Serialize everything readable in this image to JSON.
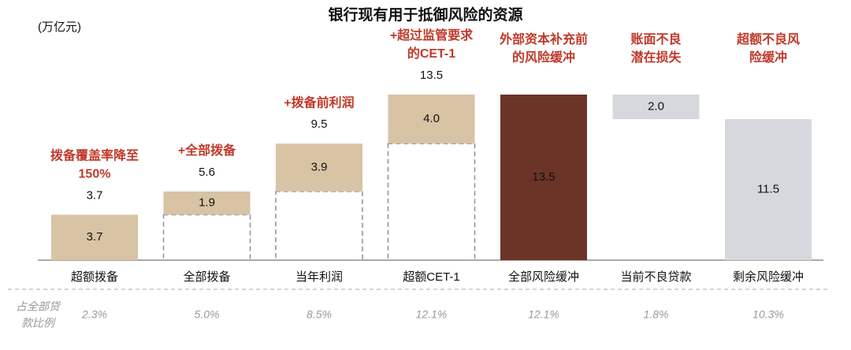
{
  "chart_data": {
    "type": "waterfall",
    "title": "银行现有用于抵御风险的资源",
    "unit": "(万亿元)",
    "categories": [
      "超额拨备",
      "全部拨备",
      "当年利润",
      "超额CET-1",
      "全部风险缓冲",
      "当前不良贷款",
      "剩余风险缓冲"
    ],
    "kinds": [
      "increase",
      "increase",
      "increase",
      "increase",
      "total",
      "decrease",
      "total"
    ],
    "values": [
      3.7,
      1.9,
      3.9,
      4.0,
      13.5,
      2.0,
      11.5
    ],
    "value_labels": [
      "3.7",
      "1.9",
      "3.9",
      "4.0",
      "13.5",
      "2.0",
      "11.5"
    ],
    "colors": [
      "#d8c3a5",
      "#d8c3a5",
      "#d8c3a5",
      "#d8c3a5",
      "#6b3426",
      "#d6d8de",
      "#d6d8de"
    ],
    "totals": [
      3.7,
      5.6,
      9.5,
      13.5,
      null,
      null,
      null
    ],
    "annotations": [
      [
        "拨备覆盖率降至",
        "150%"
      ],
      [
        "+全部拨备"
      ],
      [
        "+拨备前利润"
      ],
      [
        "+超过监管要求",
        "的CET-1"
      ],
      [
        "外部资本补充前",
        "的风险缓冲"
      ],
      [
        "账面不良",
        "潜在损失"
      ],
      [
        "超额不良风",
        "险缓冲"
      ]
    ],
    "ratio_title": [
      "占全部贷",
      "款比例"
    ],
    "ratio_labels": [
      "2.3%",
      "5.0%",
      "8.5%",
      "12.1%",
      "12.1%",
      "1.8%",
      "10.3%"
    ]
  }
}
